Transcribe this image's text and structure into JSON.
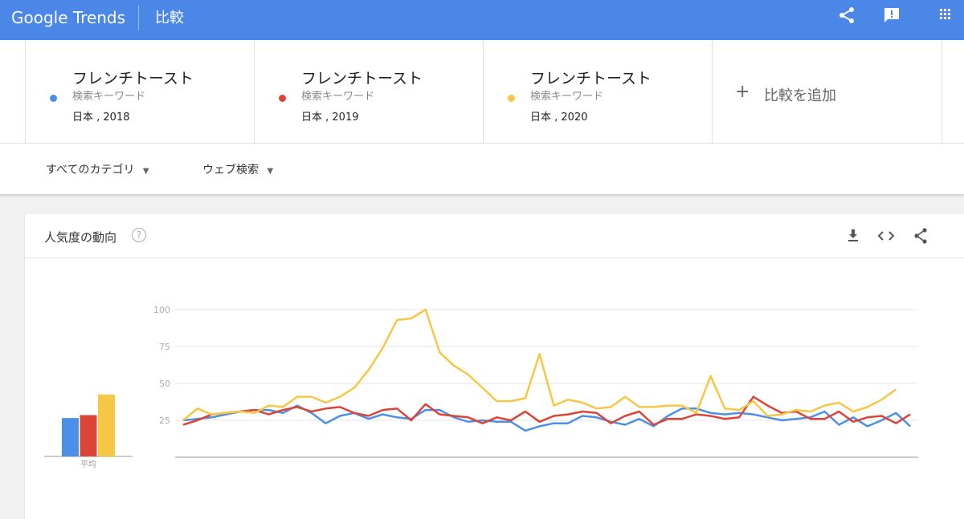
{
  "header": {
    "logo": "Google Trends",
    "title": "比較"
  },
  "terms": [
    {
      "name": "フレンチトースト",
      "type": "検索キーワード",
      "region": "日本 , 2018"
    },
    {
      "name": "フレンチトースト",
      "type": "検索キーワード",
      "region": "日本 , 2019"
    },
    {
      "name": "フレンチトースト",
      "type": "検索キーワード",
      "region": "日本 , 2020"
    }
  ],
  "add_term": "比較を追加",
  "filters": [
    "すべてのカテゴリ",
    "ウェブ検索"
  ],
  "chart_data": {
    "type": "line",
    "title": "人気度の動向",
    "average_label": "平均",
    "ylim": [
      0,
      100
    ],
    "yticks": [
      25,
      50,
      75,
      100
    ],
    "grid": true,
    "series": [
      {
        "color": "#4a90e8",
        "average": 26,
        "values": [
          25,
          26,
          27,
          29,
          31,
          32,
          32,
          30,
          35,
          30,
          23,
          28,
          30,
          26,
          29,
          27,
          26,
          32,
          32,
          27,
          24,
          25,
          24,
          24,
          18,
          21,
          23,
          23,
          28,
          27,
          24,
          22,
          26,
          21,
          28,
          33,
          33,
          30,
          29,
          30,
          29,
          27,
          25,
          26,
          27,
          31,
          22,
          27,
          21,
          25,
          30,
          21
        ]
      },
      {
        "color": "#db4437",
        "average": 28,
        "values": [
          22,
          25,
          29,
          30,
          31,
          32,
          29,
          32,
          34,
          31,
          33,
          34,
          30,
          28,
          32,
          33,
          25,
          36,
          29,
          28,
          27,
          23,
          27,
          25,
          31,
          24,
          28,
          29,
          31,
          30,
          23,
          28,
          31,
          22,
          26,
          26,
          29,
          28,
          26,
          27,
          41,
          35,
          30,
          31,
          26,
          26,
          31,
          24,
          27,
          28,
          23,
          29
        ]
      },
      {
        "color": "#f6c744",
        "average": 42,
        "values": [
          25,
          33,
          29,
          30,
          31,
          30,
          35,
          34,
          41,
          41,
          37,
          41,
          47,
          59,
          74,
          93,
          94,
          100,
          71,
          62,
          56,
          47,
          38,
          38,
          40,
          70,
          35,
          39,
          37,
          33,
          34,
          41,
          34,
          34,
          35,
          35,
          30,
          55,
          33,
          32,
          38,
          28,
          29,
          32,
          31,
          35,
          37,
          31,
          34,
          39,
          46,
          null
        ]
      }
    ]
  }
}
